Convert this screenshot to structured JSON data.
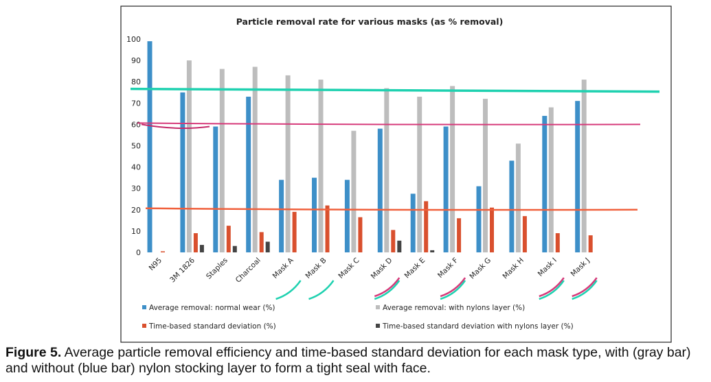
{
  "chart_data": {
    "type": "bar",
    "title": "Particle removal rate for various masks (as % removal)",
    "xlabel": "",
    "ylabel": "",
    "ylim": [
      0,
      100
    ],
    "yticks": [
      0,
      10,
      20,
      30,
      40,
      50,
      60,
      70,
      80,
      90,
      100
    ],
    "grid": false,
    "legend_position": "bottom",
    "categories": [
      "N95",
      "3M 1826",
      "Staples",
      "Charcoal",
      "Mask A",
      "Mask B",
      "Mask C",
      "Mask D",
      "Mask E",
      "Mask F",
      "Mask G",
      "Mask H",
      "Mask I",
      "Mask J"
    ],
    "series": [
      {
        "name": "Average removal: normal wear (%)",
        "color": "#3d8fc8",
        "values": [
          99,
          75,
          59,
          73,
          34,
          35,
          34,
          58,
          27.5,
          59,
          31,
          43,
          64,
          71
        ]
      },
      {
        "name": "Average removal:  with nylons layer (%)",
        "color": "#bdbdbd",
        "values": [
          0,
          90,
          86,
          87,
          83,
          81,
          57,
          77,
          73,
          78,
          72,
          51,
          68,
          81
        ]
      },
      {
        "name": "Time-based standard deviation (%)",
        "color": "#d9502e",
        "values": [
          0.5,
          9,
          12.5,
          9.5,
          19,
          22,
          16.5,
          10.5,
          24,
          16,
          21,
          17,
          9,
          8
        ]
      },
      {
        "name": "Time-based standard deviation with nylons layer (%)",
        "color": "#444444",
        "values": [
          0,
          3.5,
          3,
          5,
          0,
          0,
          0,
          5.5,
          1,
          0,
          0,
          0,
          0,
          0
        ]
      }
    ],
    "annotations": [
      {
        "type": "hand-drawn-line",
        "y": 76,
        "color": "#1fd1b0"
      },
      {
        "type": "hand-drawn-line",
        "y": 60,
        "color": "#d63a7a"
      },
      {
        "type": "hand-drawn-line",
        "y": 20,
        "color": "#f0603c"
      }
    ]
  },
  "caption": {
    "label": "Figure 5.",
    "text": " Average particle removal efficiency and time-based standard deviation for each mask type, with (gray bar) and without (blue bar) nylon stocking layer to form a tight seal with face."
  }
}
